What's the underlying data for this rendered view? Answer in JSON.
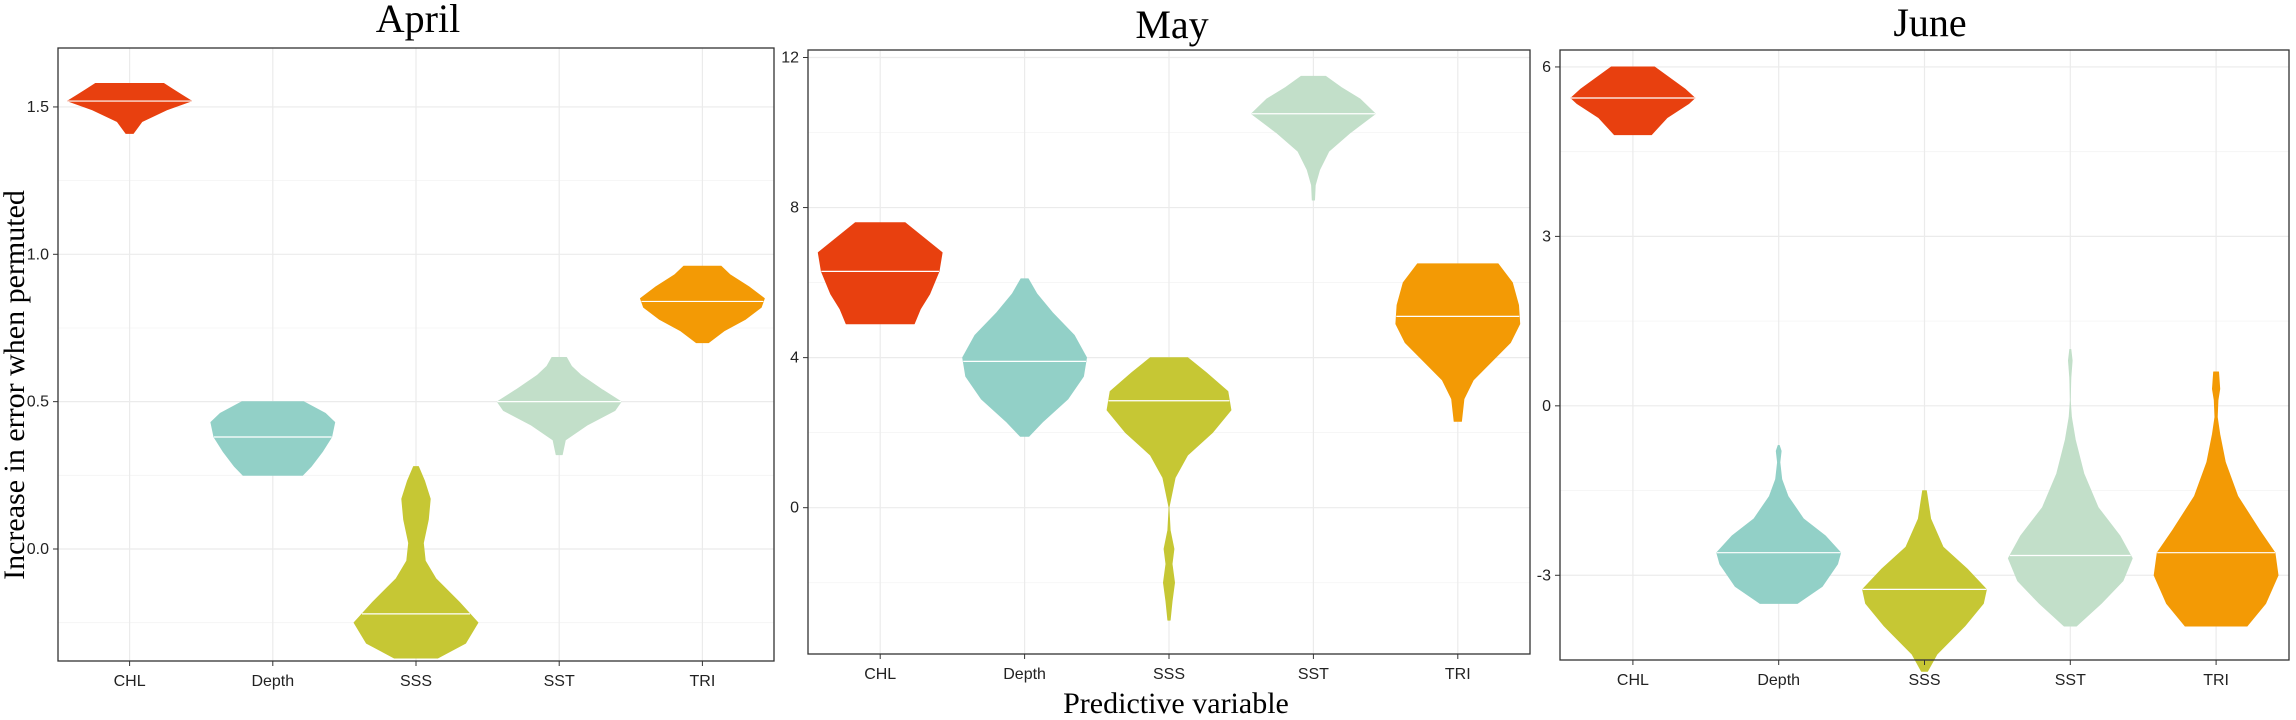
{
  "chart_data": {
    "type": "violin",
    "xlabel": "Predictive variable",
    "ylabel": "Increase in error when permuted",
    "categories": [
      "CHL",
      "Depth",
      "SSS",
      "SST",
      "TRI"
    ],
    "colors": {
      "CHL": "#e8400f",
      "Depth": "#92d0c7",
      "SSS": "#c6c734",
      "SST": "#c2dfc9",
      "TRI": "#f39a05"
    },
    "panels": [
      {
        "title": "April",
        "ylim": [
          -0.38,
          1.7
        ],
        "yticks": [
          0.0,
          0.5,
          1.0,
          1.5
        ],
        "ytick_labels": [
          "0.0",
          "0.5",
          "1.0",
          "1.5"
        ],
        "violins": [
          {
            "category": "CHL",
            "min": 1.41,
            "max": 1.58,
            "median": 1.52,
            "profile": [
              [
                1.41,
                0.06
              ],
              [
                1.45,
                0.2
              ],
              [
                1.49,
                0.6
              ],
              [
                1.52,
                1.0
              ],
              [
                1.54,
                0.85
              ],
              [
                1.56,
                0.7
              ],
              [
                1.58,
                0.55
              ]
            ]
          },
          {
            "category": "Depth",
            "min": 0.25,
            "max": 0.5,
            "median": 0.38,
            "profile": [
              [
                0.25,
                0.48
              ],
              [
                0.28,
                0.62
              ],
              [
                0.33,
                0.8
              ],
              [
                0.38,
                0.95
              ],
              [
                0.43,
                1.0
              ],
              [
                0.46,
                0.85
              ],
              [
                0.5,
                0.5
              ]
            ]
          },
          {
            "category": "SSS",
            "min": -0.37,
            "max": 0.28,
            "median": -0.22,
            "profile": [
              [
                -0.37,
                0.35
              ],
              [
                -0.32,
                0.8
              ],
              [
                -0.25,
                1.0
              ],
              [
                -0.18,
                0.7
              ],
              [
                -0.1,
                0.32
              ],
              [
                -0.04,
                0.15
              ],
              [
                0.02,
                0.12
              ],
              [
                0.1,
                0.2
              ],
              [
                0.17,
                0.23
              ],
              [
                0.23,
                0.14
              ],
              [
                0.28,
                0.04
              ]
            ]
          },
          {
            "category": "SST",
            "min": 0.32,
            "max": 0.65,
            "median": 0.5,
            "profile": [
              [
                0.32,
                0.05
              ],
              [
                0.37,
                0.1
              ],
              [
                0.42,
                0.45
              ],
              [
                0.47,
                0.9
              ],
              [
                0.5,
                1.0
              ],
              [
                0.54,
                0.7
              ],
              [
                0.59,
                0.35
              ],
              [
                0.62,
                0.2
              ],
              [
                0.65,
                0.12
              ]
            ]
          },
          {
            "category": "TRI",
            "min": 0.7,
            "max": 0.96,
            "median": 0.84,
            "profile": [
              [
                0.7,
                0.1
              ],
              [
                0.74,
                0.35
              ],
              [
                0.78,
                0.7
              ],
              [
                0.82,
                0.95
              ],
              [
                0.85,
                1.0
              ],
              [
                0.89,
                0.75
              ],
              [
                0.93,
                0.45
              ],
              [
                0.96,
                0.3
              ]
            ]
          }
        ]
      },
      {
        "title": "May",
        "ylim": [
          -3.9,
          12.2
        ],
        "yticks": [
          0,
          4,
          8,
          12
        ],
        "ytick_labels": [
          "0",
          "4",
          "8",
          "12"
        ],
        "violins": [
          {
            "category": "CHL",
            "min": 4.9,
            "max": 7.6,
            "median": 6.3,
            "profile": [
              [
                4.9,
                0.55
              ],
              [
                5.3,
                0.65
              ],
              [
                5.7,
                0.8
              ],
              [
                6.3,
                0.95
              ],
              [
                6.8,
                1.0
              ],
              [
                7.2,
                0.7
              ],
              [
                7.6,
                0.4
              ]
            ]
          },
          {
            "category": "Depth",
            "min": 1.9,
            "max": 6.1,
            "median": 3.9,
            "profile": [
              [
                1.9,
                0.07
              ],
              [
                2.3,
                0.3
              ],
              [
                2.9,
                0.7
              ],
              [
                3.5,
                0.95
              ],
              [
                4.0,
                1.0
              ],
              [
                4.6,
                0.8
              ],
              [
                5.2,
                0.45
              ],
              [
                5.7,
                0.2
              ],
              [
                6.1,
                0.06
              ]
            ]
          },
          {
            "category": "SSS",
            "min": -3.0,
            "max": 4.0,
            "median": 2.85,
            "profile": [
              [
                -3.0,
                0.02
              ],
              [
                -2.5,
                0.05
              ],
              [
                -2.0,
                0.09
              ],
              [
                -1.5,
                0.05
              ],
              [
                -1.1,
                0.08
              ],
              [
                -0.6,
                0.02
              ],
              [
                0.0,
                0.0
              ],
              [
                0.8,
                0.1
              ],
              [
                1.4,
                0.3
              ],
              [
                2.0,
                0.7
              ],
              [
                2.6,
                1.0
              ],
              [
                3.1,
                0.95
              ],
              [
                3.6,
                0.6
              ],
              [
                4.0,
                0.3
              ]
            ]
          },
          {
            "category": "SST",
            "min": 8.2,
            "max": 11.5,
            "median": 10.5,
            "profile": [
              [
                8.2,
                0.02
              ],
              [
                8.6,
                0.03
              ],
              [
                9.0,
                0.1
              ],
              [
                9.5,
                0.25
              ],
              [
                10.0,
                0.6
              ],
              [
                10.5,
                1.0
              ],
              [
                10.9,
                0.75
              ],
              [
                11.2,
                0.45
              ],
              [
                11.5,
                0.2
              ]
            ]
          },
          {
            "category": "TRI",
            "min": 2.3,
            "max": 6.5,
            "median": 5.1,
            "profile": [
              [
                2.3,
                0.06
              ],
              [
                2.9,
                0.1
              ],
              [
                3.4,
                0.25
              ],
              [
                3.9,
                0.55
              ],
              [
                4.4,
                0.85
              ],
              [
                4.9,
                1.0
              ],
              [
                5.4,
                0.98
              ],
              [
                6.0,
                0.88
              ],
              [
                6.5,
                0.65
              ]
            ]
          }
        ]
      },
      {
        "title": "June",
        "ylim": [
          -4.5,
          6.3
        ],
        "yticks": [
          -3,
          0,
          3,
          6
        ],
        "ytick_labels": [
          "-3",
          "0",
          "3",
          "6"
        ],
        "violins": [
          {
            "category": "CHL",
            "min": 4.8,
            "max": 6.0,
            "median": 5.45,
            "profile": [
              [
                4.8,
                0.3
              ],
              [
                5.1,
                0.55
              ],
              [
                5.35,
                0.9
              ],
              [
                5.45,
                1.0
              ],
              [
                5.6,
                0.85
              ],
              [
                5.8,
                0.6
              ],
              [
                6.0,
                0.35
              ]
            ]
          },
          {
            "category": "Depth",
            "min": -3.5,
            "max": -0.7,
            "median": -2.6,
            "profile": [
              [
                -3.5,
                0.3
              ],
              [
                -3.2,
                0.7
              ],
              [
                -2.8,
                0.95
              ],
              [
                -2.6,
                1.0
              ],
              [
                -2.3,
                0.75
              ],
              [
                -2.0,
                0.4
              ],
              [
                -1.6,
                0.15
              ],
              [
                -1.3,
                0.05
              ],
              [
                -1.0,
                0.02
              ],
              [
                -0.8,
                0.04
              ],
              [
                -0.7,
                0.01
              ]
            ]
          },
          {
            "category": "SSS",
            "min": -4.7,
            "max": -1.5,
            "median": -3.25,
            "profile": [
              [
                -4.7,
                0.05
              ],
              [
                -4.4,
                0.2
              ],
              [
                -3.9,
                0.65
              ],
              [
                -3.5,
                0.95
              ],
              [
                -3.25,
                1.0
              ],
              [
                -2.9,
                0.7
              ],
              [
                -2.5,
                0.3
              ],
              [
                -2.0,
                0.1
              ],
              [
                -1.5,
                0.03
              ]
            ]
          },
          {
            "category": "SST",
            "min": -3.9,
            "max": 1.0,
            "median": -2.65,
            "profile": [
              [
                -3.9,
                0.1
              ],
              [
                -3.5,
                0.5
              ],
              [
                -3.1,
                0.85
              ],
              [
                -2.7,
                1.0
              ],
              [
                -2.3,
                0.8
              ],
              [
                -1.8,
                0.45
              ],
              [
                -1.2,
                0.22
              ],
              [
                -0.6,
                0.08
              ],
              [
                -0.2,
                0.02
              ],
              [
                0.1,
                0.0
              ],
              [
                0.5,
                0.01
              ],
              [
                0.8,
                0.03
              ],
              [
                1.0,
                0.01
              ]
            ]
          },
          {
            "category": "TRI",
            "min": -3.9,
            "max": 0.6,
            "median": -2.6,
            "profile": [
              [
                -3.9,
                0.5
              ],
              [
                -3.5,
                0.8
              ],
              [
                -3.0,
                1.0
              ],
              [
                -2.6,
                0.95
              ],
              [
                -2.2,
                0.7
              ],
              [
                -1.6,
                0.35
              ],
              [
                -1.0,
                0.15
              ],
              [
                -0.5,
                0.06
              ],
              [
                -0.2,
                0.02
              ],
              [
                0.1,
                0.03
              ],
              [
                0.3,
                0.06
              ],
              [
                0.6,
                0.04
              ]
            ]
          }
        ]
      }
    ]
  }
}
